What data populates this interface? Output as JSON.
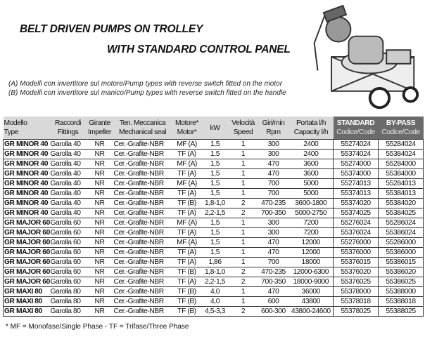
{
  "title_line1": "BELT DRIVEN PUMPS ON TROLLEY",
  "title_line2": "WITH STANDARD CONTROL PANEL",
  "notes": [
    "(A) Modelli con invertitore sul motore/Pump types with reverse switch fitted on the motor",
    "(B) Modelli con invertitore sul manico/Pump types with reverse switch fitted on the handle"
  ],
  "headers": [
    [
      "Modello",
      "Type"
    ],
    [
      "Raccordi",
      "Fittings"
    ],
    [
      "Girante",
      "Impeller"
    ],
    [
      "Ten. Meccanica",
      "Mechanical seal"
    ],
    [
      "Motore*",
      "Motor*"
    ],
    [
      "kW",
      ""
    ],
    [
      "Velocità",
      "Speed"
    ],
    [
      "Giri/min",
      "Rpm"
    ],
    [
      "Portata l/h",
      "Capacity l/h"
    ],
    [
      "STANDARD",
      "Codice/Code"
    ],
    [
      "BY-PASS",
      "Codice/Code"
    ]
  ],
  "rows": [
    [
      "GR MINOR 40",
      "Garolla 40",
      "NR",
      "Cer.-Grafite-NBR",
      "MF (A)",
      "1,5",
      "1",
      "300",
      "2400",
      "55274024",
      "55284024"
    ],
    [
      "GR MINOR 40",
      "Garolla 40",
      "NR",
      "Cer.-Grafite-NBR",
      "TF (A)",
      "1,5",
      "1",
      "300",
      "2400",
      "55374024",
      "55384024"
    ],
    [
      "GR MINOR 40",
      "Garolla 40",
      "NR",
      "Cer.-Grafite-NBR",
      "MF (A)",
      "1,5",
      "1",
      "470",
      "3600",
      "55274000",
      "55284000"
    ],
    [
      "GR MINOR 40",
      "Garolla 40",
      "NR",
      "Cer.-Grafite-NBR",
      "TF (A)",
      "1,5",
      "1",
      "470",
      "3600",
      "55374000",
      "55384000"
    ],
    [
      "GR MINOR 40",
      "Garolla 40",
      "NR",
      "Cer.-Grafite-NBR",
      "MF (A)",
      "1,5",
      "1",
      "700",
      "5000",
      "55274013",
      "55284013"
    ],
    [
      "GR MINOR 40",
      "Garolla 40",
      "NR",
      "Cer.-Grafite-NBR",
      "TF (A)",
      "1,5",
      "1",
      "700",
      "5000",
      "55374013",
      "55384013"
    ],
    [
      "GR MINOR 40",
      "Garolla 40",
      "NR",
      "Cer.-Grafite-NBR",
      "TF (B)",
      "1,8-1,0",
      "2",
      "470-235",
      "3600-1800",
      "55374020",
      "55384020"
    ],
    [
      "GR MINOR 40",
      "Garolla 40",
      "NR",
      "Cer.-Grafite-NBR",
      "TF (A)",
      "2,2-1,5",
      "2",
      "700-350",
      "5000-2750",
      "55374025",
      "55384025"
    ],
    [
      "GR MAJOR 60",
      "Garolla 60",
      "NR",
      "Cer.-Grafite-NBR",
      "MF (A)",
      "1,5",
      "1",
      "300",
      "7200",
      "55276024",
      "55286024"
    ],
    [
      "GR MAJOR 60",
      "Garolla 60",
      "NR",
      "Cer.-Grafite-NBR",
      "TF (A)",
      "1,5",
      "1",
      "300",
      "7200",
      "55376024",
      "55386024"
    ],
    [
      "GR MAJOR 60",
      "Garolla 60",
      "NR",
      "Cer.-Grafite-NBR",
      "MF (A)",
      "1,5",
      "1",
      "470",
      "12000",
      "55276000",
      "55286000"
    ],
    [
      "GR MAJOR 60",
      "Garolla 60",
      "NR",
      "Cer.-Grafite-NBR",
      "TF (A)",
      "1,5",
      "1",
      "470",
      "12000",
      "55376000",
      "55386000"
    ],
    [
      "GR MAJOR 60",
      "Garolla 60",
      "NR",
      "Cer.-Grafite-NBR",
      "TF (A)",
      "1,86",
      "1",
      "700",
      "18000",
      "55376015",
      "55386015"
    ],
    [
      "GR MAJOR 60",
      "Garolla 60",
      "NR",
      "Cer.-Grafite-NBR",
      "TF (B)",
      "1,8-1,0",
      "2",
      "470-235",
      "12000-6300",
      "55376020",
      "55386020"
    ],
    [
      "GR MAJOR 60",
      "Garolla 60",
      "NR",
      "Cer.-Grafite-NBR",
      "TF (A)",
      "2,2-1,5",
      "2",
      "700-350",
      "18000-9000",
      "55376025",
      "55386025"
    ],
    [
      "GR MAXI 80",
      "Garolla 80",
      "NR",
      "Cer.-Grafite-NBR",
      "TF (B)",
      "4,0",
      "1",
      "470",
      "36000",
      "55378000",
      "55388000"
    ],
    [
      "GR MAXI 80",
      "Garolla 80",
      "NR",
      "Cer.-Grafite-NBR",
      "TF (B)",
      "4,0",
      "1",
      "600",
      "43800",
      "55378018",
      "55388018"
    ],
    [
      "GR MAXI 80",
      "Garolla 80",
      "NR",
      "Cer.-Grafite-NBR",
      "TF (B)",
      "4,5-3,3",
      "2",
      "600-300",
      "43800-24600",
      "55378025",
      "55388025"
    ]
  ],
  "footnote": "* MF = Monofase/Single Phase - TF = Trifase/Three Phase"
}
